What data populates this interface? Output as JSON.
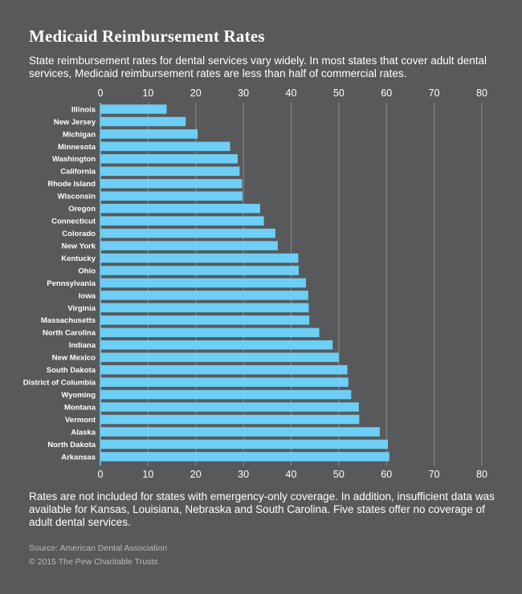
{
  "header": {
    "title": "Medicaid Reimbursement Rates",
    "subtitle": "State reimbursement rates for dental services vary widely. In most states that cover adult dental services, Medicaid reimbursement rates are less than half of commercial rates."
  },
  "footer": {
    "note": "Rates are not included for states with emergency-only coverage. In addition, insufficient data was available for Kansas, Louisiana, Nebraska and South Carolina. Five states offer no coverage of adult dental services.",
    "source": "Source: American Dental Association",
    "copyright": "© 2015 The Pew Charitable Trusts"
  },
  "colors": {
    "background": "#58595b",
    "bar": "#6dcff6",
    "gridline": "#8a8b8d"
  },
  "chart_data": {
    "type": "bar",
    "orientation": "horizontal",
    "categories": [
      "Illinois",
      "New Jersey",
      "Michigan",
      "Minnesota",
      "Washington",
      "California",
      "Rhode Island",
      "Wisconsin",
      "Oregon",
      "Connecticut",
      "Colorado",
      "New York",
      "Kentucky",
      "Ohio",
      "Pennsylvania",
      "Iowa",
      "Virginia",
      "Massachusetts",
      "North Carolina",
      "Indiana",
      "New Mexico",
      "South Dakota",
      "District of Columbia",
      "Wyoming",
      "Montana",
      "Vermont",
      "Alaska",
      "North Dakota",
      "Arkansas"
    ],
    "values": [
      13.9,
      17.9,
      20.4,
      27.2,
      28.8,
      29.2,
      29.7,
      29.8,
      33.5,
      34.3,
      36.7,
      37.2,
      41.5,
      41.6,
      43.1,
      43.6,
      43.7,
      43.8,
      45.9,
      48.7,
      50.0,
      51.8,
      52.0,
      52.6,
      54.2,
      54.3,
      58.6,
      60.3,
      60.6
    ],
    "xticks": [
      0,
      10,
      20,
      30,
      40,
      50,
      60,
      70,
      80
    ],
    "xlim": [
      0,
      80
    ],
    "axis_position": "top and bottom",
    "grid": true
  }
}
